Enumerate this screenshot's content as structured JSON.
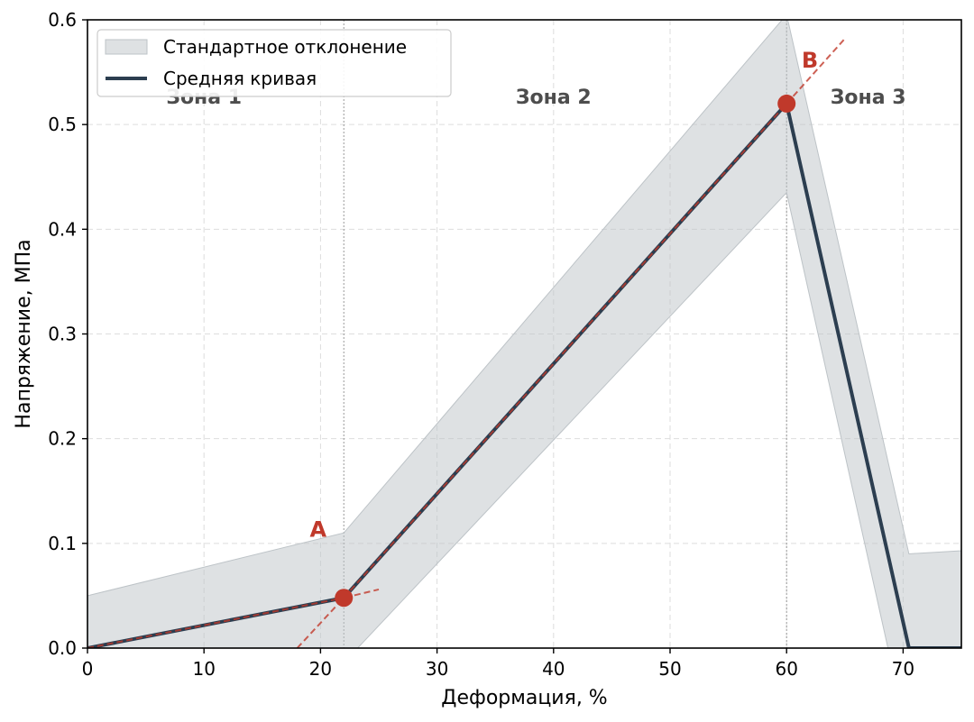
{
  "chart_data": {
    "type": "line",
    "xlabel": "Деформация, %",
    "ylabel": "Напряжение, МПа",
    "xlim": [
      0,
      75
    ],
    "ylim": [
      0,
      0.6
    ],
    "xticks": [
      0,
      10,
      20,
      30,
      40,
      50,
      60,
      70
    ],
    "yticks": [
      0,
      0.1,
      0.2,
      0.3,
      0.4,
      0.5,
      0.6
    ],
    "grid": true,
    "legend_position": "top-left",
    "series": [
      {
        "name": "Средняя кривая",
        "color": "#2c3e50",
        "x": [
          0,
          22,
          60,
          70.5,
          75
        ],
        "y": [
          0,
          0.048,
          0.52,
          0,
          0
        ]
      }
    ],
    "band": {
      "name": "Стандартное отклонение",
      "color": "#bdc3c7",
      "x": [
        0,
        22,
        60,
        70.5,
        75
      ],
      "upper": [
        0.05,
        0.11,
        0.605,
        0.09,
        0.093
      ],
      "lower": [
        -0.05,
        -0.014,
        0.435,
        -0.09,
        -0.093
      ]
    },
    "fit_lines": {
      "color": "#c0392b",
      "lines": [
        {
          "x": [
            0,
            22
          ],
          "y": [
            0,
            0.048
          ]
        },
        {
          "x": [
            18,
            22,
            25
          ],
          "y": [
            0,
            0.048,
            0.056
          ]
        },
        {
          "x": [
            22,
            60
          ],
          "y": [
            0.048,
            0.52
          ]
        },
        {
          "x": [
            60,
            65
          ],
          "y": [
            0.52,
            0.582
          ]
        }
      ]
    },
    "zone_boundaries": [
      22,
      60
    ],
    "zones": [
      {
        "label": "Зона 1",
        "x": 10,
        "y": 0.527
      },
      {
        "label": "Зона 2",
        "x": 40,
        "y": 0.527
      },
      {
        "label": "Зона 3",
        "x": 67,
        "y": 0.527
      }
    ],
    "points": [
      {
        "label": "A",
        "x": 22,
        "y": 0.048,
        "label_x": 19.8,
        "label_y": 0.114,
        "color": "#c0392b"
      },
      {
        "label": "B",
        "x": 60,
        "y": 0.52,
        "label_x": 62,
        "label_y": 0.562,
        "color": "#c0392b"
      }
    ]
  }
}
